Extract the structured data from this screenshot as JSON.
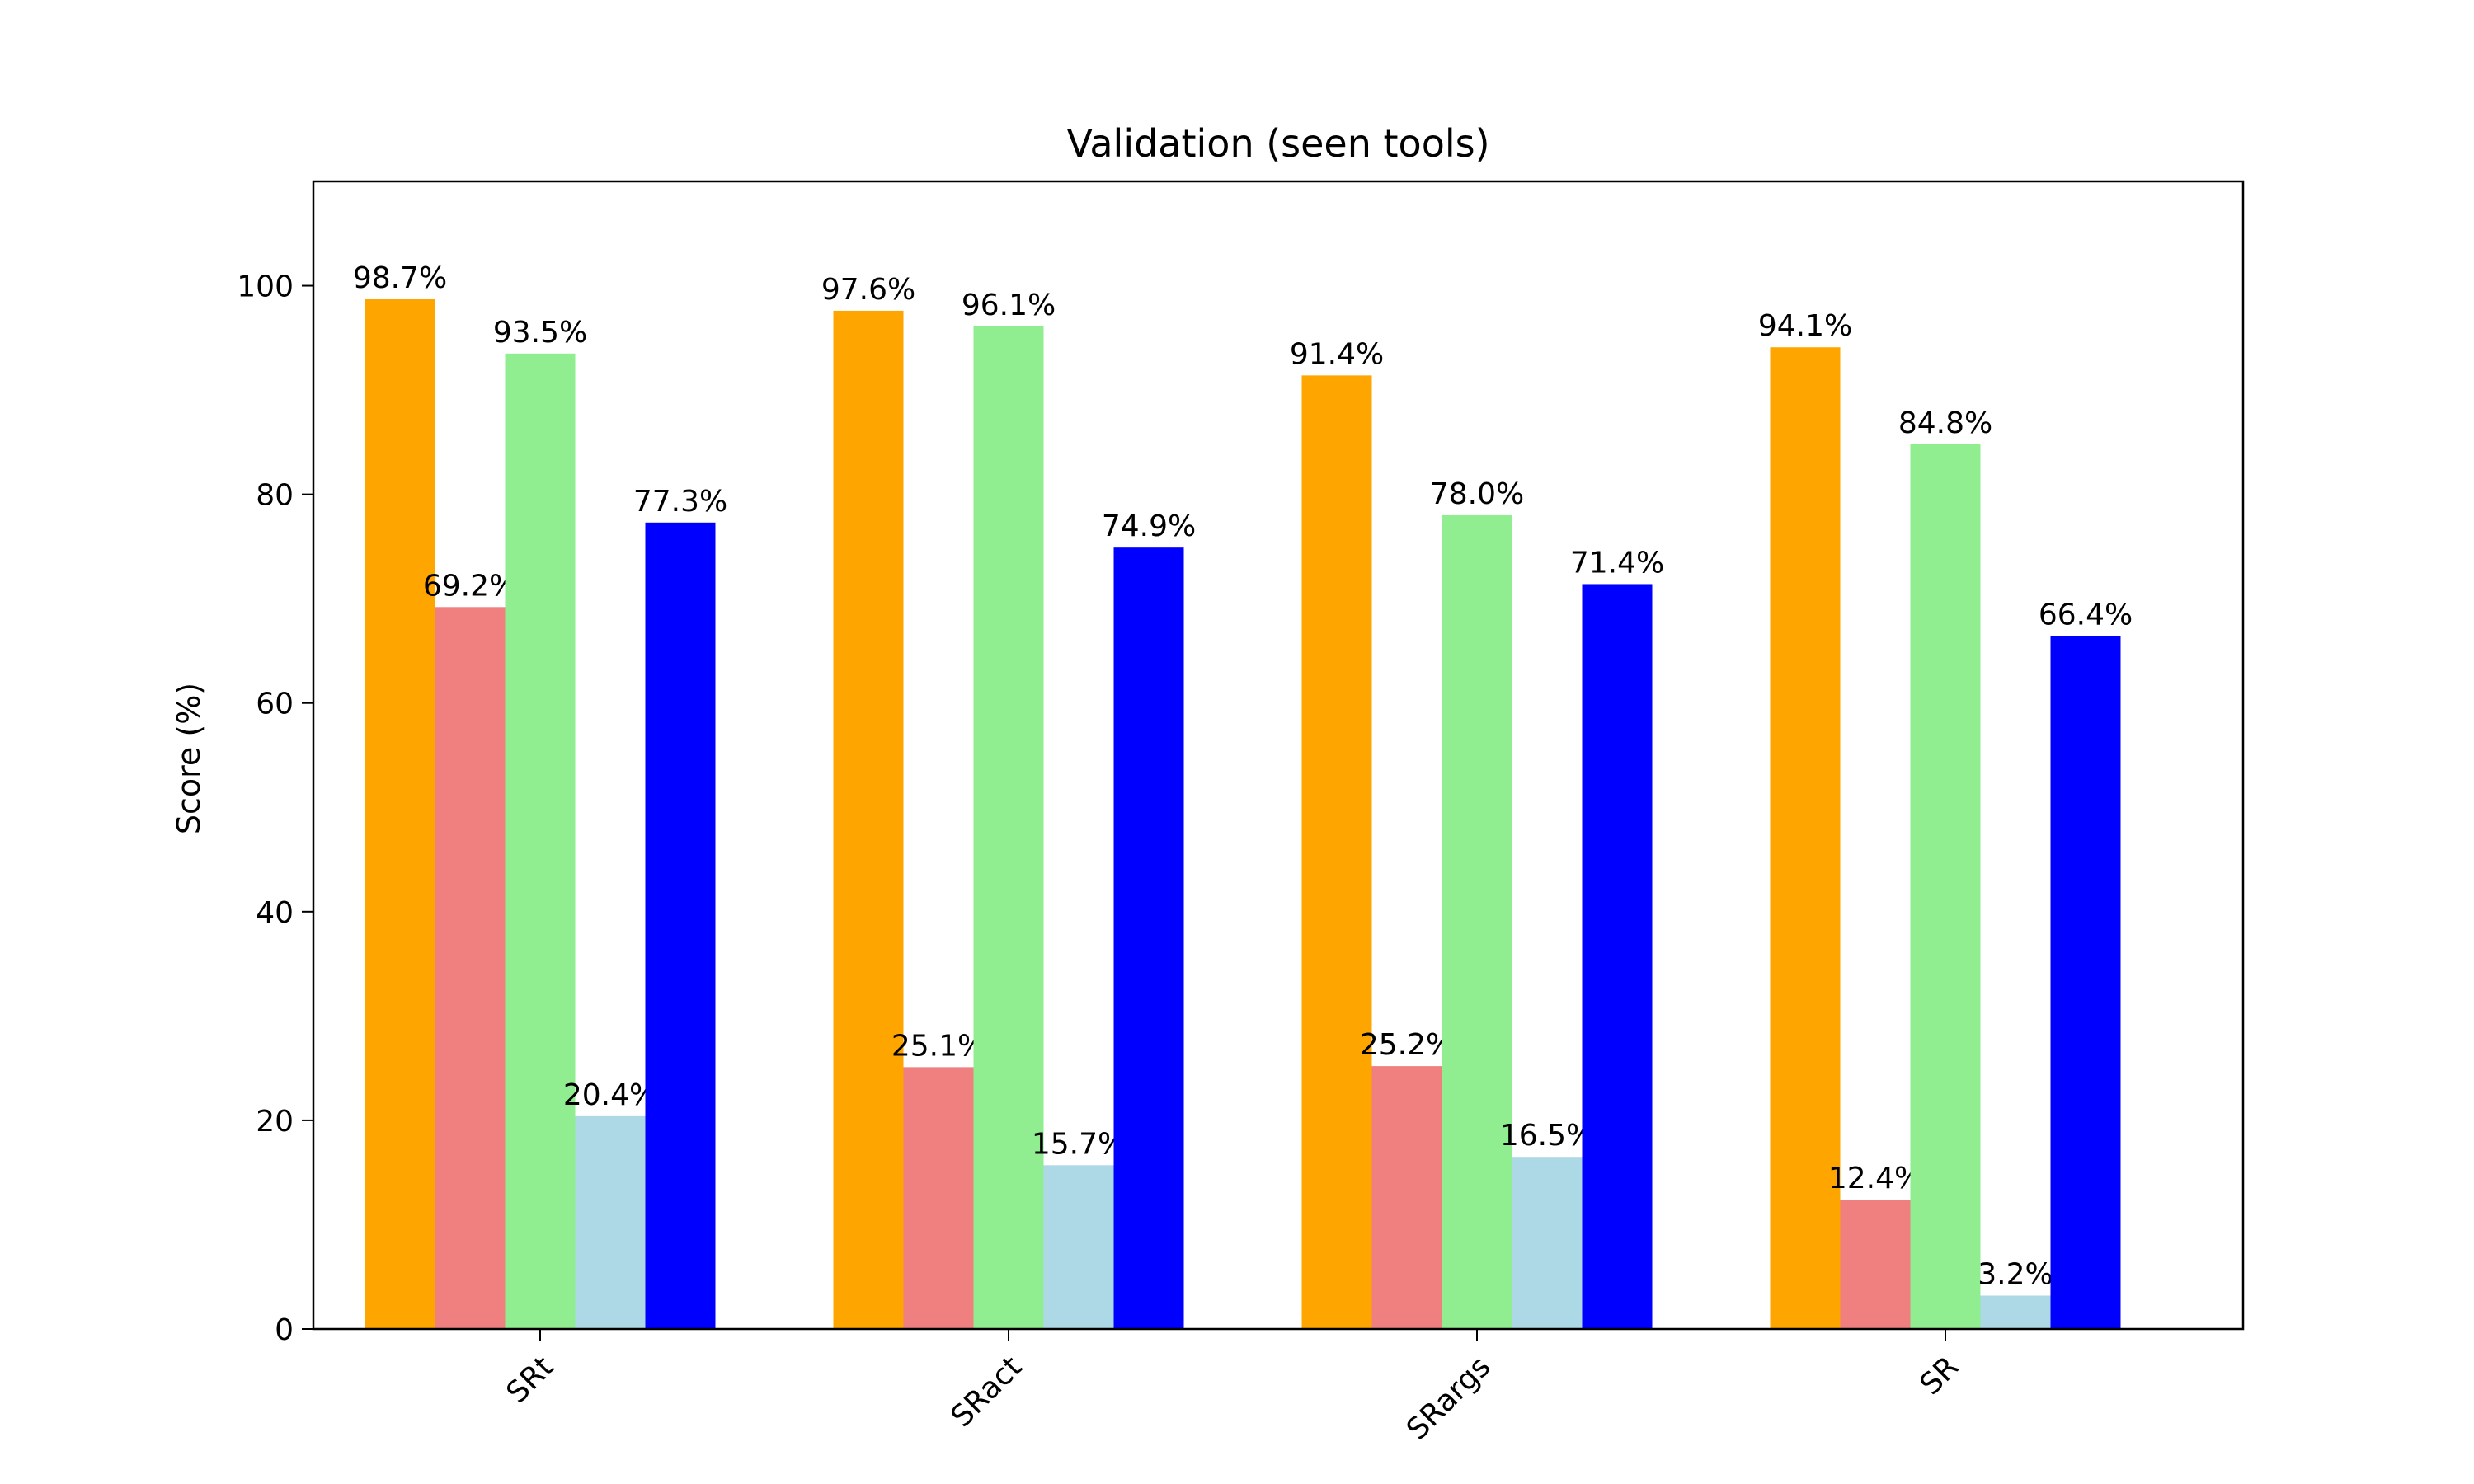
{
  "chart_data": {
    "type": "bar",
    "title": "Validation (seen tools)",
    "xlabel": "",
    "ylabel": "Score (%)",
    "ylim": [
      0,
      110
    ],
    "yticks": [
      0,
      20,
      40,
      60,
      80,
      100
    ],
    "grid": false,
    "legend": "none",
    "categories": [
      "SRt",
      "SRact",
      "SRargs",
      "SR"
    ],
    "series": [
      {
        "color": "#ffa500",
        "values": [
          98.7,
          97.6,
          91.4,
          94.1
        ],
        "labels": [
          "98.7%",
          "97.6%",
          "91.4%",
          "94.1%"
        ]
      },
      {
        "color": "#f08080",
        "values": [
          69.2,
          25.1,
          25.2,
          12.4
        ],
        "labels": [
          "69.2%",
          "25.1%",
          "25.2%",
          "12.4%"
        ]
      },
      {
        "color": "#90ee90",
        "values": [
          93.5,
          96.1,
          78.0,
          84.8
        ],
        "labels": [
          "93.5%",
          "96.1%",
          "78.0%",
          "84.8%"
        ]
      },
      {
        "color": "#add8e6",
        "values": [
          20.4,
          15.7,
          16.5,
          3.2
        ],
        "labels": [
          "20.4%",
          "15.7%",
          "16.5%",
          "3.2%"
        ]
      },
      {
        "color": "#0000ff",
        "values": [
          77.3,
          74.9,
          71.4,
          66.4
        ],
        "labels": [
          "77.3%",
          "74.9%",
          "71.4%",
          "66.4%"
        ]
      }
    ]
  }
}
